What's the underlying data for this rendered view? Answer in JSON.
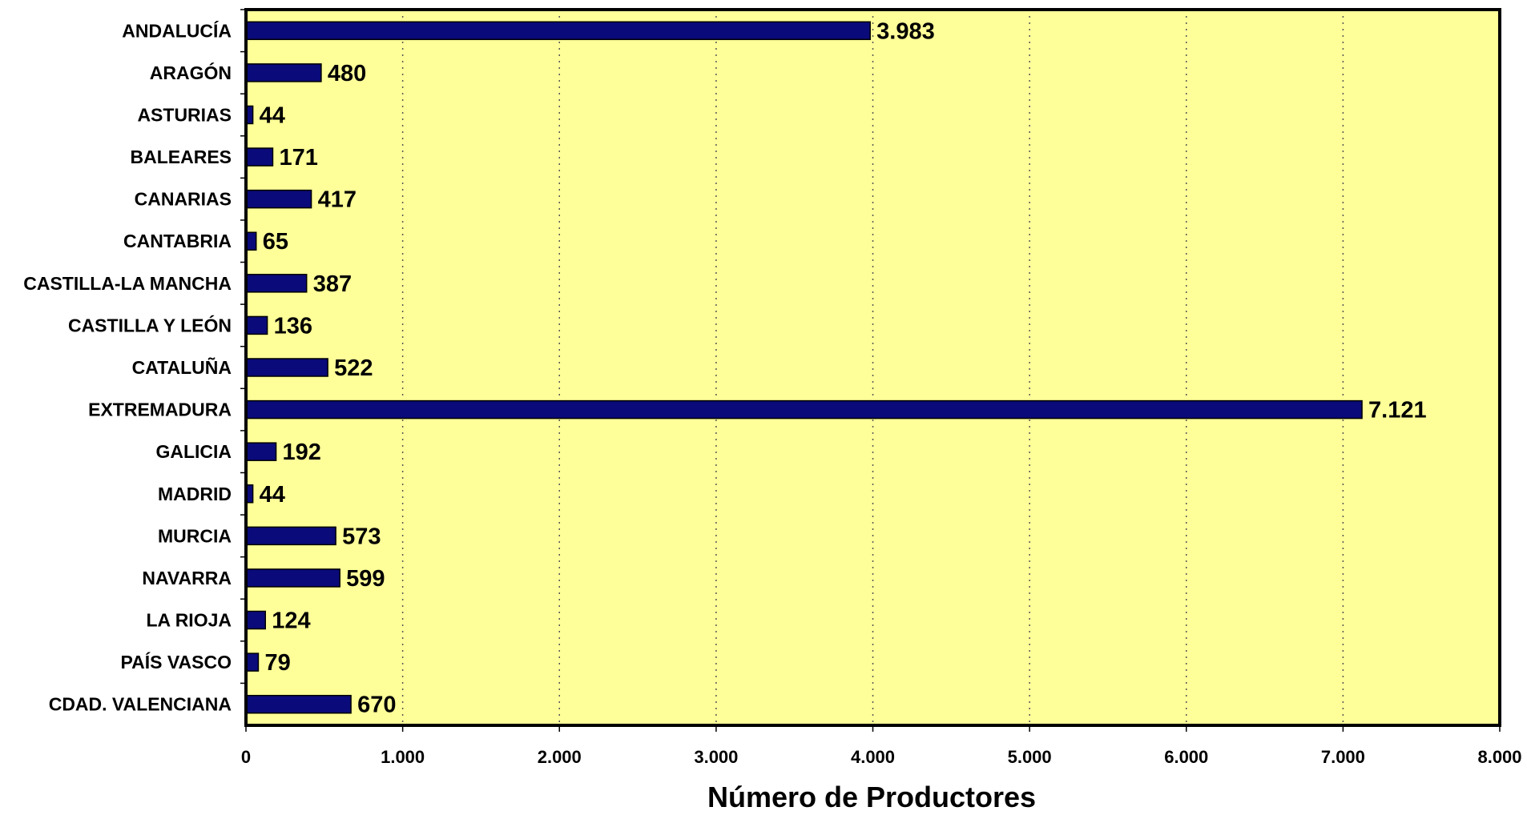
{
  "chart_data": {
    "type": "bar",
    "orientation": "horizontal",
    "title": "",
    "xlabel": "Número de Productores",
    "ylabel": "",
    "xlim": [
      0,
      8000
    ],
    "xticks": [
      0,
      1000,
      2000,
      3000,
      4000,
      5000,
      6000,
      7000,
      8000
    ],
    "xtick_labels": [
      "0",
      "1.000",
      "2.000",
      "3.000",
      "4.000",
      "5.000",
      "6.000",
      "7.000",
      "8.000"
    ],
    "grid": "vertical dotted",
    "legend": "none",
    "categories": [
      "ANDALUCÍA",
      "ARAGÓN",
      "ASTURIAS",
      "BALEARES",
      "CANARIAS",
      "CANTABRIA",
      "CASTILLA-LA MANCHA",
      "CASTILLA Y LEÓN",
      "CATALUÑA",
      "EXTREMADURA",
      "GALICIA",
      "MADRID",
      "MURCIA",
      "NAVARRA",
      "LA RIOJA",
      "PAÍS VASCO",
      "CDAD. VALENCIANA"
    ],
    "values": [
      3983,
      480,
      44,
      171,
      417,
      65,
      387,
      136,
      522,
      7121,
      192,
      44,
      573,
      599,
      124,
      79,
      670
    ],
    "value_labels": [
      "3.983",
      "480",
      "44",
      "171",
      "417",
      "65",
      "387",
      "136",
      "522",
      "7.121",
      "192",
      "44",
      "573",
      "599",
      "124",
      "79",
      "670"
    ],
    "colors": {
      "bar": "#0a0a7a",
      "plot_background": "#ffff99",
      "frame": "#000000",
      "grid": "#555555"
    }
  }
}
